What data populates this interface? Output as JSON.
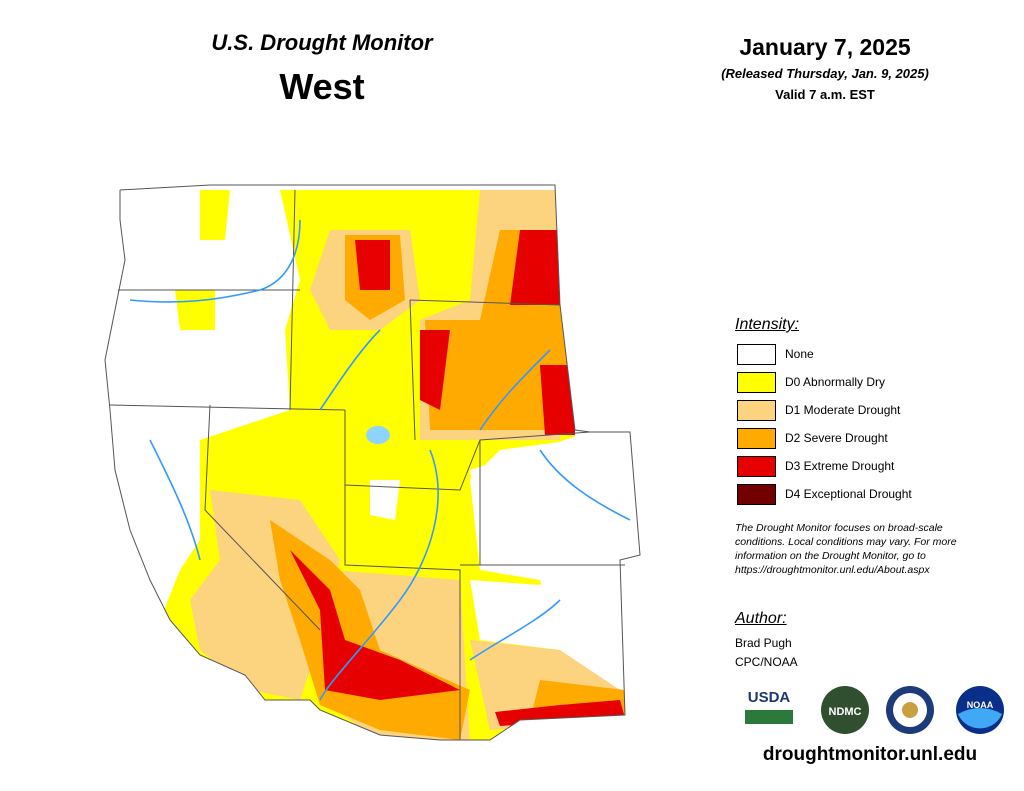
{
  "header": {
    "title": "U.S. Drought Monitor",
    "region": "West",
    "date": "January 7, 2025",
    "released": "(Released Thursday, Jan. 9, 2025)",
    "valid": "Valid 7 a.m. EST"
  },
  "legend": {
    "title": "Intensity:",
    "items": [
      {
        "label": "None",
        "color": "#ffffff"
      },
      {
        "label": "D0 Abnormally Dry",
        "color": "#ffff00"
      },
      {
        "label": "D1 Moderate Drought",
        "color": "#fcd37f"
      },
      {
        "label": "D2 Severe Drought",
        "color": "#ffaa00"
      },
      {
        "label": "D3 Extreme Drought",
        "color": "#e60000"
      },
      {
        "label": "D4 Exceptional Drought",
        "color": "#730000"
      }
    ]
  },
  "note": [
    "The Drought Monitor focuses on broad-scale",
    "conditions. Local conditions may vary. For more",
    "information on the Drought Monitor, go to",
    "https://droughtmonitor.unl.edu/About.aspx"
  ],
  "author": {
    "title": "Author:",
    "name": "Brad Pugh",
    "org": "CPC/NOAA"
  },
  "logos": [
    "USDA",
    "NDMC",
    "NOAA"
  ],
  "url": "droughtmonitor.unl.edu"
}
